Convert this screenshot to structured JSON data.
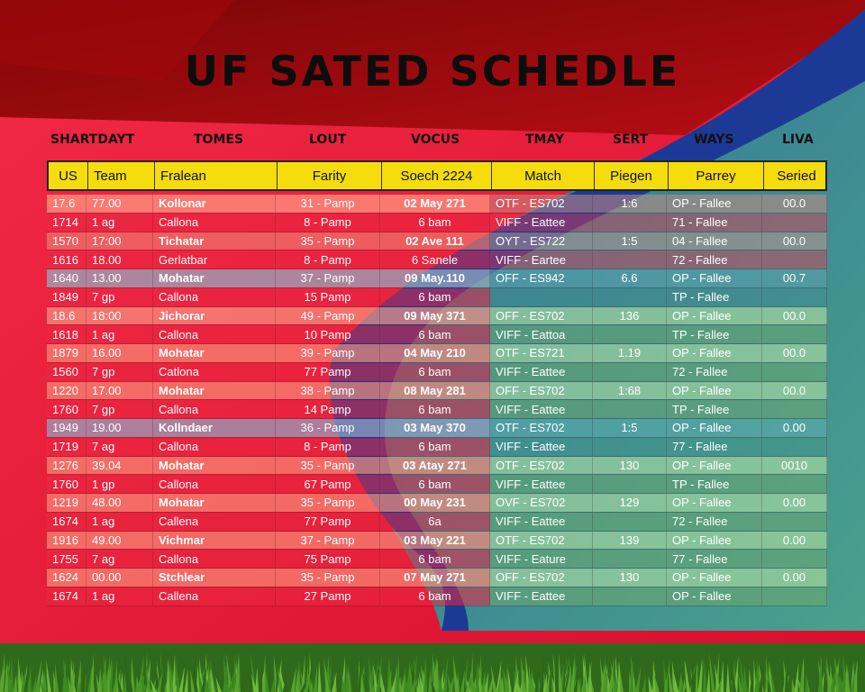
{
  "title": "UF SATED SCHEDLE",
  "top_labels": [
    "SHARTDAYT",
    "TOMES",
    "LOUT",
    "VOCUS",
    "TMAY",
    "SERT",
    "WAYS",
    "LIVA"
  ],
  "columns": [
    "US",
    "Team",
    "Fralean",
    "Farity",
    "Soech 2224",
    "Match",
    "Piegen",
    "Parrey",
    "Seried"
  ],
  "rows": [
    {
      "a": [
        "17.6",
        "77.00",
        "Kollonar",
        "31 - Pamp",
        "02 May 271",
        "OTF - ES702",
        "1:6",
        "OP - Fallee",
        "00.0"
      ],
      "b": [
        "1714",
        "1 ag",
        "Callona",
        "8 - Pamp",
        "6 bam",
        "VIFF - Eattee",
        "",
        "71 - Fallee",
        ""
      ]
    },
    {
      "a": [
        "1570",
        "17:00",
        "Tichatar",
        "35 - Pamp",
        "02 Ave 111",
        "OYT - ES722",
        "1:5",
        "04 - Fallee",
        "00.0"
      ],
      "b": [
        "1616",
        "18.00",
        "Gerlatbar",
        "8 - Pamp",
        "6 Sanele",
        "VIFF - Eartee",
        "",
        "72 - Fallee",
        ""
      ]
    },
    {
      "a": [
        "1640",
        "13.00",
        "Mohatar",
        "37 - Pamp",
        "09 May.110",
        "OFF - ES942",
        "6.6",
        "OP - Fallee",
        "00.7"
      ],
      "b": [
        "1849",
        "7 gp",
        "Callona",
        "15 Pamp",
        "6 bam",
        "",
        "",
        "TP - Fallee",
        ""
      ]
    },
    {
      "a": [
        "18.6",
        "18:00",
        "Jichorar",
        "49 - Pamp",
        "09 May 371",
        "OFF - ES702",
        "136",
        "OP - Fallee",
        "00.0"
      ],
      "b": [
        "1618",
        "1 ag",
        "Callona",
        "10 Pamp",
        "6 bam",
        "VIFF - Eattoa",
        "",
        "TP - Fallee",
        ""
      ]
    },
    {
      "a": [
        "1879",
        "16.00",
        "Mohatar",
        "39 - Pamp",
        "04 May 210",
        "OTF - ES721",
        "1.19",
        "OP - Fallee",
        "00.0"
      ],
      "b": [
        "1560",
        "7 gp",
        "Catlona",
        "77 Pamp",
        "6 bam",
        "VIFF - Eattee",
        "",
        "72 - Fallee",
        ""
      ]
    },
    {
      "a": [
        "1220",
        "17.00",
        "Mohatar",
        "38 - Pamp",
        "08 May 281",
        "OFF - ES702",
        "1:68",
        "OP - Fallee",
        "00.0"
      ],
      "b": [
        "1760",
        "7 gp",
        "Callona",
        "14 Pamp",
        "6 bam",
        "VIFF - Eattee",
        "",
        "TP - Fallee",
        ""
      ]
    },
    {
      "a": [
        "1949",
        "19.00",
        "Kollndaer",
        "36 - Pamp",
        "03 May 370",
        "OTF - ES702",
        "1:5",
        "OP - Fallee",
        "0.00"
      ],
      "b": [
        "1719",
        "7 ag",
        "Callona",
        "8 - Pamp",
        "6 bam",
        "VIFF - Eattee",
        "",
        "77 - Fallee",
        ""
      ]
    },
    {
      "a": [
        "1276",
        "39.04",
        "Mohatar",
        "35 - Pamp",
        "03 Atay 271",
        "OTF - ES702",
        "130",
        "OP - Fallee",
        "0010"
      ],
      "b": [
        "1760",
        "1 gp",
        "Callona",
        "67 Pamp",
        "6 bam",
        "VIFF - Eattee",
        "",
        "TP - Fallee",
        ""
      ]
    },
    {
      "a": [
        "1219",
        "48.00",
        "Mohatar",
        "35 - Pamp",
        "00 May 231",
        "OVF - ES702",
        "129",
        "OP - Fallee",
        "0.00"
      ],
      "b": [
        "1674",
        "1 ag",
        "Callena",
        "77 Pamp",
        "6a",
        "VIFF - Eattee",
        "",
        "72 - Fallee",
        ""
      ]
    },
    {
      "a": [
        "1916",
        "49.00",
        "Vichmar",
        "37 - Pamp",
        "03 May 221",
        "OTF - ES702",
        "139",
        "OP - Fallee",
        "0.00"
      ],
      "b": [
        "1755",
        "7 ag",
        "Callona",
        "75 Pamp",
        "6 bam",
        "VIFF - Eature",
        "",
        "77 - Fallee",
        ""
      ]
    },
    {
      "a": [
        "1624",
        "00.00",
        "Stchlear",
        "35 - Pamp",
        "07 May 271",
        "OFF - ES702",
        "130",
        "OP - Fallee",
        "0.00"
      ],
      "b": [
        "1674",
        "1 ag",
        "Callena",
        "27 Pamp",
        "6 bam",
        "VIFF - Eattee",
        "",
        "OP - Fallee",
        ""
      ]
    }
  ],
  "colors": {
    "header_yellow": "#f5dc0c",
    "background_red": "#e5193a",
    "dark_red": "#8a0a0c",
    "wave_blue": "#1f3c96",
    "teal": "#3e8d87",
    "grass": "#4a8d2a"
  }
}
